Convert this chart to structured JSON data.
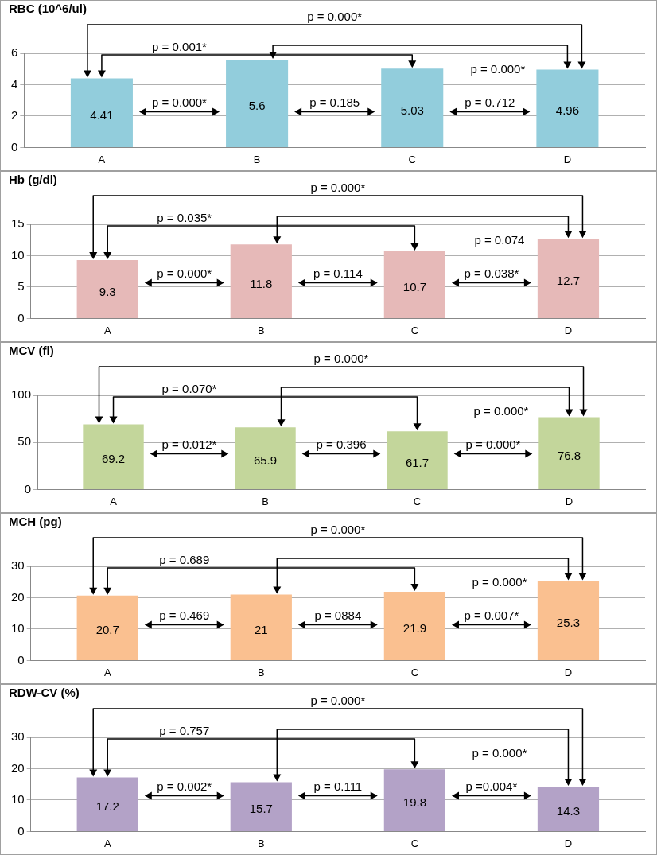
{
  "chart_data": [
    {
      "type": "bar",
      "title": "RBC (10^6/ul)",
      "categories": [
        "A",
        "B",
        "C",
        "D"
      ],
      "values": [
        4.41,
        5.6,
        5.03,
        4.96
      ],
      "color": "#92cddc",
      "ylim": [
        0,
        6
      ],
      "yticks": [
        0,
        2,
        4,
        6
      ],
      "grid": "y",
      "data_labels": true,
      "annotations": [
        "p = 0.000*",
        "p = 0.001*",
        "p = 0.000*",
        "p = 0.000*",
        "p = 0.185",
        "p = 0.712"
      ]
    },
    {
      "type": "bar",
      "title": "Hb (g/dl)",
      "categories": [
        "A",
        "B",
        "C",
        "D"
      ],
      "values": [
        9.3,
        11.8,
        10.7,
        12.7
      ],
      "color": "#e6b9b8",
      "ylim": [
        0,
        15
      ],
      "yticks": [
        0,
        5,
        10,
        15
      ],
      "grid": "y",
      "data_labels": true,
      "annotations": [
        "p = 0.000*",
        "p = 0.035*",
        "p = 0.074",
        "p = 0.000*",
        "p = 0.114",
        "p = 0.038*"
      ]
    },
    {
      "type": "bar",
      "title": "MCV (fl)",
      "categories": [
        "A",
        "B",
        "C",
        "D"
      ],
      "values": [
        69.2,
        65.9,
        61.7,
        76.8
      ],
      "color": "#c3d69b",
      "ylim": [
        0,
        100
      ],
      "yticks": [
        0,
        50,
        100
      ],
      "grid": "y",
      "data_labels": true,
      "annotations": [
        "p = 0.000*",
        "p = 0.070*",
        "p = 0.000*",
        "p = 0.012*",
        "p = 0.396",
        "p = 0.000*"
      ]
    },
    {
      "type": "bar",
      "title": "MCH (pg)",
      "categories": [
        "A",
        "B",
        "C",
        "D"
      ],
      "values": [
        20.7,
        21,
        21.9,
        25.3
      ],
      "color": "#fac090",
      "ylim": [
        0,
        30
      ],
      "yticks": [
        0,
        10,
        20,
        30
      ],
      "grid": "y",
      "data_labels": true,
      "annotations": [
        "p = 0.000*",
        "p = 0.689",
        "p = 0.000*",
        "p = 0.469",
        "p = 0884",
        "p = 0.007*"
      ]
    },
    {
      "type": "bar",
      "title": "RDW-CV (%)",
      "categories": [
        "A",
        "B",
        "C",
        "D"
      ],
      "values": [
        17.2,
        15.7,
        19.8,
        14.3
      ],
      "color": "#b3a2c7",
      "ylim": [
        0,
        30
      ],
      "yticks": [
        0,
        10,
        20,
        30
      ],
      "grid": "y",
      "data_labels": true,
      "annotations": [
        "p = 0.000*",
        "p = 0.757",
        "p = 0.000*",
        "p = 0.002*",
        "p = 0.111",
        "p =0.004*"
      ]
    }
  ]
}
